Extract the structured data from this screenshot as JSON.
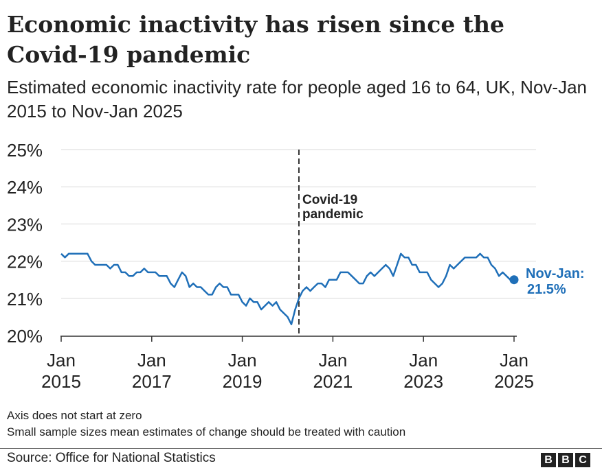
{
  "title": "Economic inactivity has risen since the Covid-19 pandemic",
  "subtitle": "Estimated economic inactivity rate for people aged 16 to 64, UK, Nov-Jan 2015 to Nov-Jan 2025",
  "notes": [
    "Axis does not start at zero",
    "Small sample sizes mean estimates of change should be treated with caution"
  ],
  "source": "Source: Office for National Statistics",
  "logo": [
    "B",
    "B",
    "C"
  ],
  "colors": {
    "line": "#1f6fb8",
    "grid": "#d9d9d9",
    "text": "#222222"
  },
  "chart_data": {
    "type": "line",
    "title": "Economic inactivity has risen since the Covid-19 pandemic",
    "ylabel": "",
    "xlabel": "",
    "ylim": [
      20,
      25
    ],
    "xlim": [
      2015.0,
      2025.0
    ],
    "yticks": [
      {
        "value": 25,
        "label": "25%"
      },
      {
        "value": 24,
        "label": "24%"
      },
      {
        "value": 23,
        "label": "23%"
      },
      {
        "value": 22,
        "label": "22%"
      },
      {
        "value": 21,
        "label": "21%"
      },
      {
        "value": 20,
        "label": "20%"
      }
    ],
    "xticks": [
      {
        "value": 2015,
        "line1": "Jan",
        "line2": "2015"
      },
      {
        "value": 2017,
        "line1": "Jan",
        "line2": "2017"
      },
      {
        "value": 2019,
        "line1": "Jan",
        "line2": "2019"
      },
      {
        "value": 2021,
        "line1": "Jan",
        "line2": "2021"
      },
      {
        "value": 2023,
        "line1": "Jan",
        "line2": "2023"
      },
      {
        "value": 2025,
        "line1": "Jan",
        "line2": "2025"
      }
    ],
    "grid": true,
    "annotation": {
      "x": 2020.25,
      "line1": "Covid-19",
      "line2": "pandemic",
      "style": "dashed vertical line"
    },
    "endpoint": {
      "x": 2025.0,
      "y": 21.5,
      "line1": "Nov-Jan:",
      "line2": "21.5%"
    },
    "series": [
      {
        "x": [
          2015.0,
          2015.083,
          2015.167,
          2015.25,
          2015.333,
          2015.417,
          2015.5,
          2015.583,
          2015.667,
          2015.75,
          2015.833,
          2015.917,
          2016.0,
          2016.083,
          2016.167,
          2016.25,
          2016.333,
          2016.417,
          2016.5,
          2016.583,
          2016.667,
          2016.75,
          2016.833,
          2016.917,
          2017.0,
          2017.083,
          2017.167,
          2017.25,
          2017.333,
          2017.417,
          2017.5,
          2017.583,
          2017.667,
          2017.75,
          2017.833,
          2017.917,
          2018.0,
          2018.083,
          2018.167,
          2018.25,
          2018.333,
          2018.417,
          2018.5,
          2018.583,
          2018.667,
          2018.75,
          2018.833,
          2018.917,
          2019.0,
          2019.083,
          2019.167,
          2019.25,
          2019.333,
          2019.417,
          2019.5,
          2019.583,
          2019.667,
          2019.75,
          2019.833,
          2019.917,
          2020.0,
          2020.083,
          2020.167,
          2020.25,
          2020.333,
          2020.417,
          2020.5,
          2020.583,
          2020.667,
          2020.75,
          2020.833,
          2020.917,
          2021.0,
          2021.083,
          2021.167,
          2021.25,
          2021.333,
          2021.417,
          2021.5,
          2021.583,
          2021.667,
          2021.75,
          2021.833,
          2021.917,
          2022.0,
          2022.083,
          2022.167,
          2022.25,
          2022.333,
          2022.417,
          2022.5,
          2022.583,
          2022.667,
          2022.75,
          2022.833,
          2022.917,
          2023.0,
          2023.083,
          2023.167,
          2023.25,
          2023.333,
          2023.417,
          2023.5,
          2023.583,
          2023.667,
          2023.75,
          2023.833,
          2023.917,
          2024.0,
          2024.083,
          2024.167,
          2024.25,
          2024.333,
          2024.417,
          2024.5,
          2024.583,
          2024.667,
          2024.75,
          2024.833,
          2024.917,
          2025.0
        ],
        "values": [
          22.2,
          22.1,
          22.2,
          22.2,
          22.2,
          22.2,
          22.2,
          22.2,
          22.0,
          21.9,
          21.9,
          21.9,
          21.9,
          21.8,
          21.9,
          21.9,
          21.7,
          21.7,
          21.6,
          21.6,
          21.7,
          21.7,
          21.8,
          21.7,
          21.7,
          21.7,
          21.6,
          21.6,
          21.6,
          21.4,
          21.3,
          21.5,
          21.7,
          21.6,
          21.3,
          21.4,
          21.3,
          21.3,
          21.2,
          21.1,
          21.1,
          21.3,
          21.4,
          21.3,
          21.3,
          21.1,
          21.1,
          21.1,
          20.9,
          20.8,
          21.0,
          20.9,
          20.9,
          20.7,
          20.8,
          20.9,
          20.8,
          20.9,
          20.7,
          20.6,
          20.5,
          20.3,
          20.7,
          21.0,
          21.2,
          21.3,
          21.2,
          21.3,
          21.4,
          21.4,
          21.3,
          21.5,
          21.5,
          21.5,
          21.7,
          21.7,
          21.7,
          21.6,
          21.5,
          21.4,
          21.4,
          21.6,
          21.7,
          21.6,
          21.7,
          21.8,
          21.9,
          21.8,
          21.6,
          21.9,
          22.2,
          22.1,
          22.1,
          21.9,
          21.9,
          21.7,
          21.7,
          21.7,
          21.5,
          21.4,
          21.3,
          21.4,
          21.6,
          21.9,
          21.8,
          21.9,
          22.0,
          22.1,
          22.1,
          22.1,
          22.1,
          22.2,
          22.1,
          22.1,
          21.9,
          21.8,
          21.6,
          21.7,
          21.6,
          21.5,
          21.5
        ]
      }
    ]
  }
}
